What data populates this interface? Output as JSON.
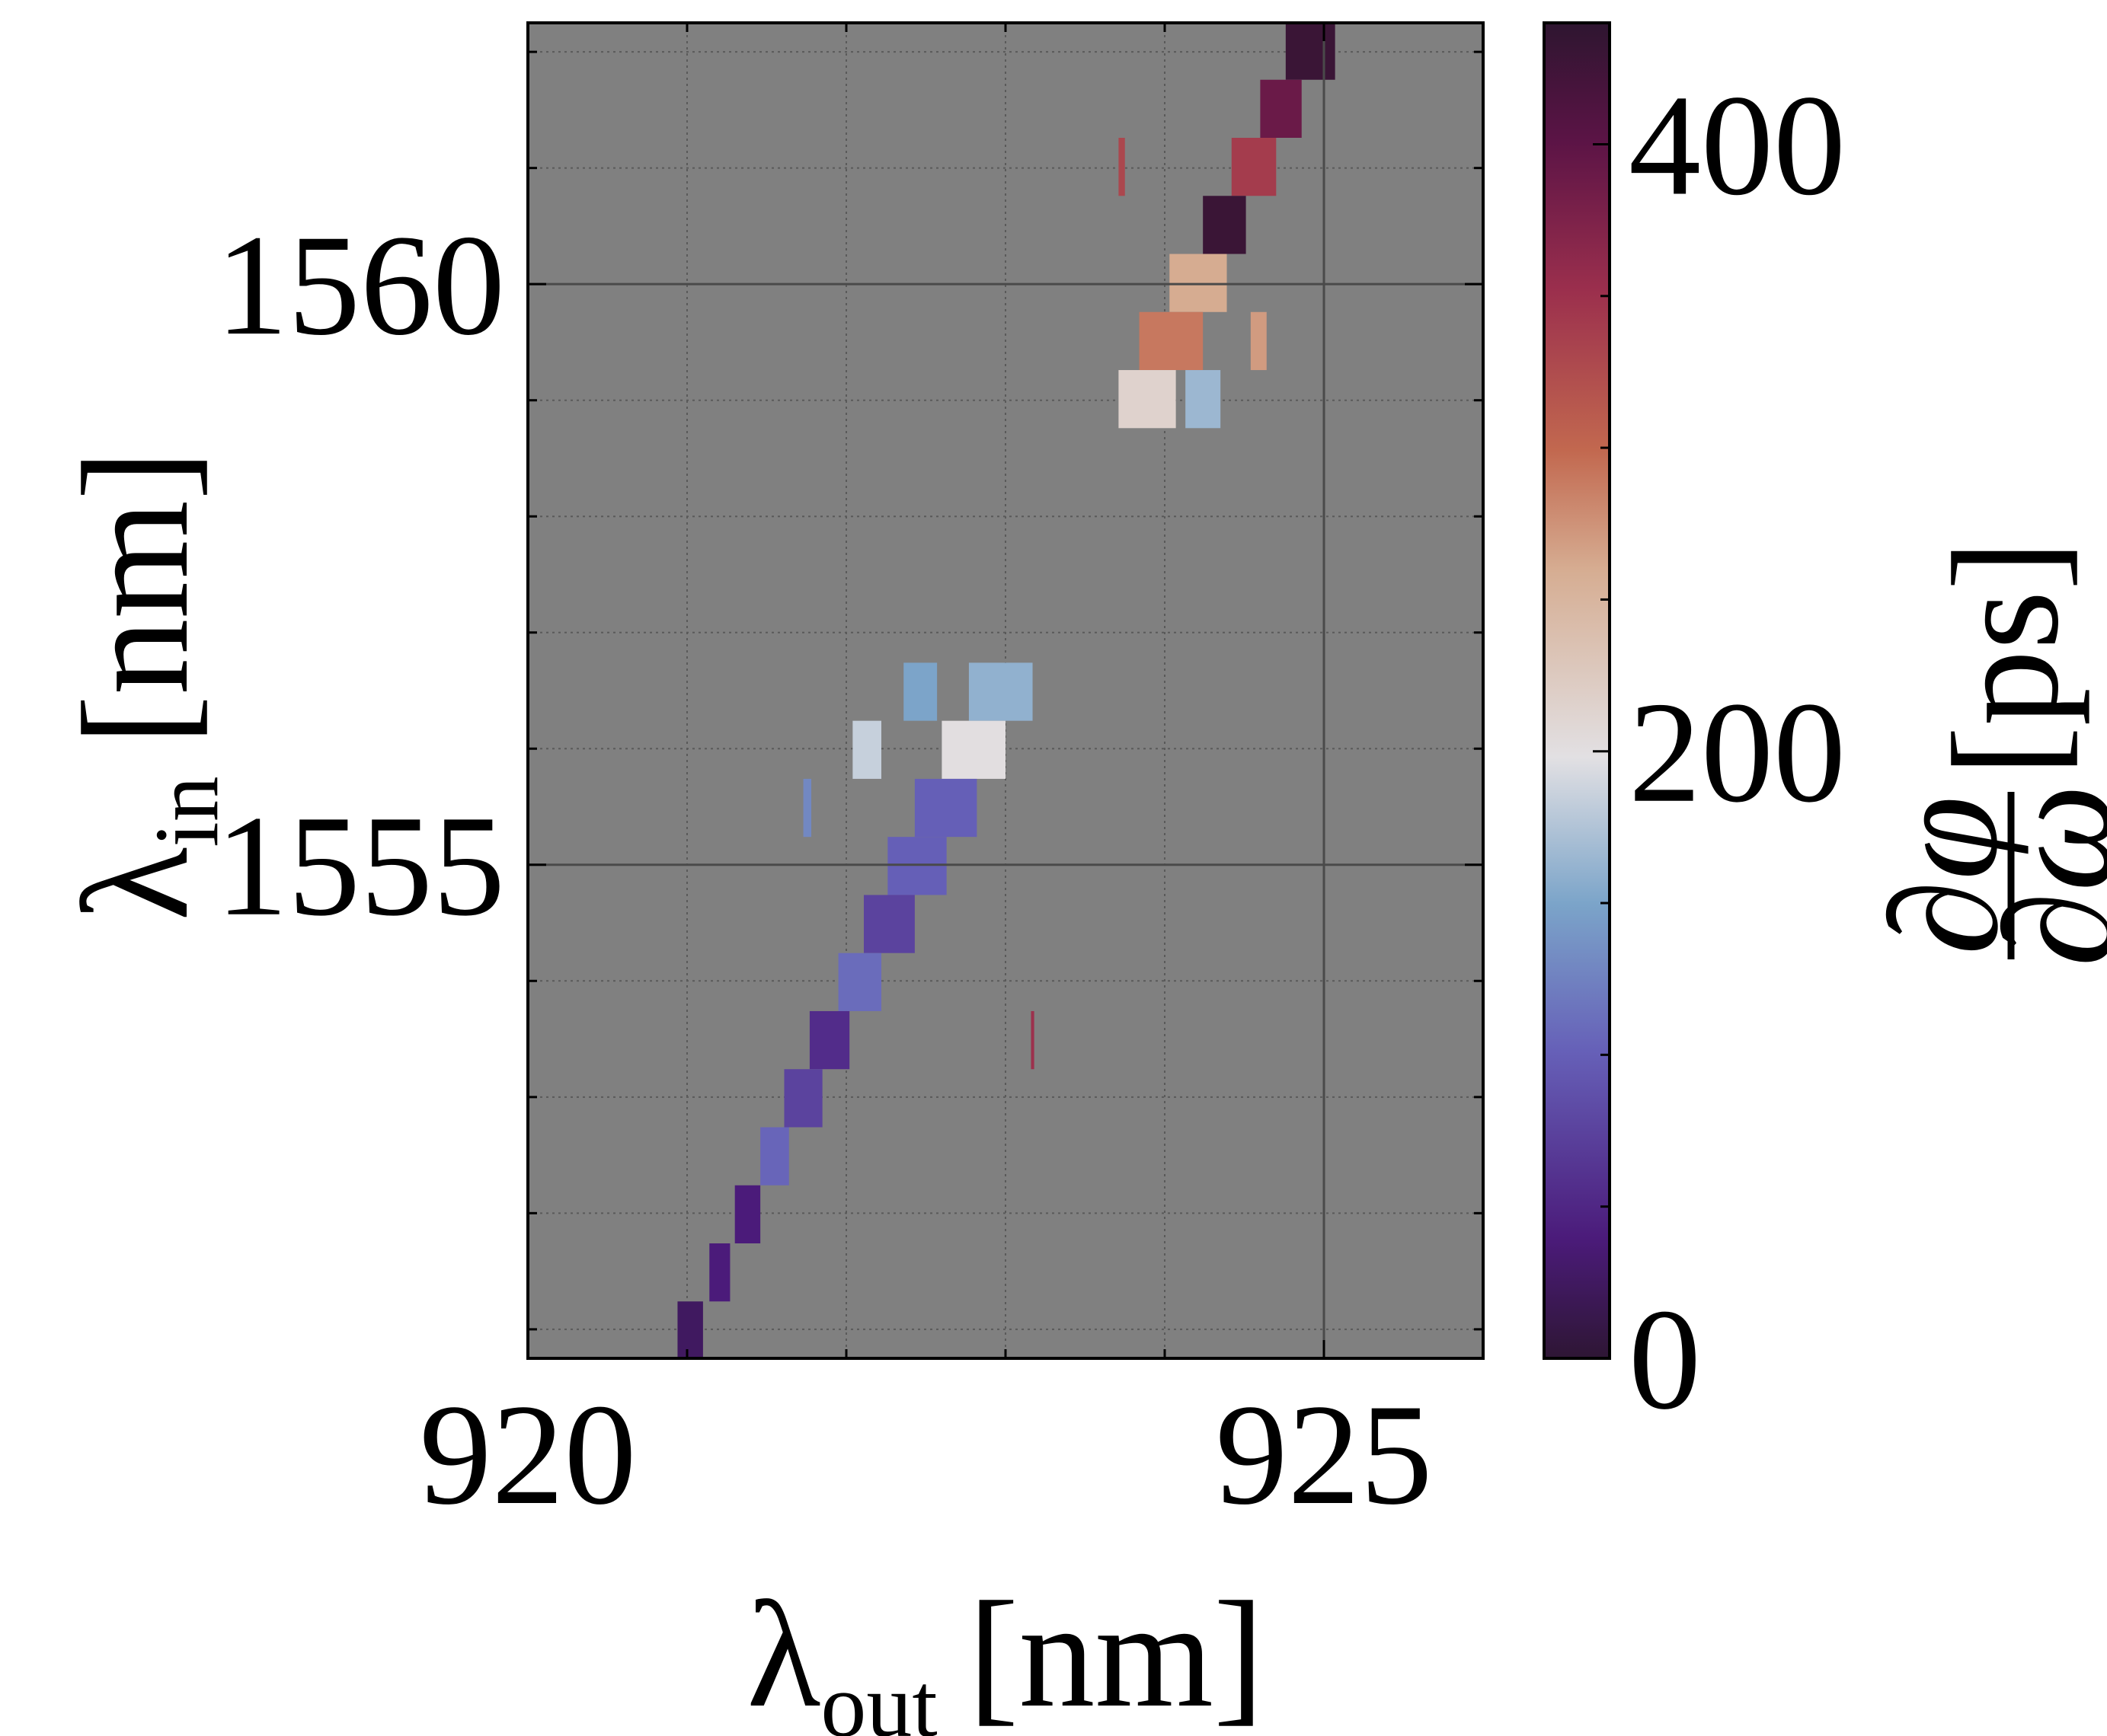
{
  "chart_data": {
    "type": "heatmap",
    "xlabel": {
      "symbol": "λ",
      "subscript": "out",
      "unit": "[nm]"
    },
    "ylabel": {
      "symbol": "λ",
      "subscript": "in",
      "unit": "[nm]"
    },
    "colorbar_label": {
      "numerator": "∂φ",
      "denominator": "∂ω",
      "unit": "[ps]"
    },
    "xlim": [
      920,
      926
    ],
    "xticks": [
      920,
      925
    ],
    "xminor_ticks": [
      921,
      922,
      923,
      924
    ],
    "ylim": [
      1550.75,
      1562.25
    ],
    "yticks": [
      1555,
      1560
    ],
    "yminor_ticks": [
      1551,
      1552,
      1553,
      1554,
      1556,
      1557,
      1558,
      1559,
      1561,
      1562
    ],
    "clim": [
      0,
      440
    ],
    "cticks": [
      0,
      200,
      400
    ],
    "cminor_ticks": [
      50,
      100,
      150,
      250,
      300,
      350
    ],
    "grid": true,
    "background": "#808080",
    "colormap": [
      [
        0,
        "#2e1634"
      ],
      [
        0.09,
        "#4b1b7a"
      ],
      [
        0.23,
        "#6660b8"
      ],
      [
        0.34,
        "#7ba4c9"
      ],
      [
        0.45,
        "#e2e0e3"
      ],
      [
        0.59,
        "#d6ad92"
      ],
      [
        0.68,
        "#c2684f"
      ],
      [
        0.8,
        "#9b2f4d"
      ],
      [
        0.91,
        "#5c1446"
      ],
      [
        1,
        "#2e1530"
      ]
    ],
    "cells": [
      {
        "x0": 924.76,
        "x1": 925.07,
        "y0": 1561.76,
        "y1": 1562.26,
        "value": 430
      },
      {
        "x0": 924.6,
        "x1": 924.86,
        "y0": 1561.26,
        "y1": 1561.76,
        "value": 390
      },
      {
        "x0": 924.42,
        "x1": 924.7,
        "y0": 1560.76,
        "y1": 1561.26,
        "value": 340
      },
      {
        "x0": 924.24,
        "x1": 924.51,
        "y0": 1560.26,
        "y1": 1560.76,
        "value": 430
      },
      {
        "x0": 924.03,
        "x1": 924.39,
        "y0": 1559.76,
        "y1": 1560.26,
        "value": 260
      },
      {
        "x0": 923.84,
        "x1": 924.24,
        "y0": 1559.26,
        "y1": 1559.76,
        "value": 290
      },
      {
        "x0": 924.54,
        "x1": 924.64,
        "y0": 1559.26,
        "y1": 1559.76,
        "value": 270
      },
      {
        "x0": 923.71,
        "x1": 924.07,
        "y0": 1558.76,
        "y1": 1559.26,
        "value": 215
      },
      {
        "x0": 924.13,
        "x1": 924.35,
        "y0": 1558.76,
        "y1": 1559.26,
        "value": 165
      },
      {
        "x0": 923.71,
        "x1": 923.75,
        "y0": 1560.76,
        "y1": 1561.26,
        "value": 330
      },
      {
        "x0": 922.36,
        "x1": 922.57,
        "y0": 1556.24,
        "y1": 1556.74,
        "value": 150
      },
      {
        "x0": 922.77,
        "x1": 923.17,
        "y0": 1556.24,
        "y1": 1556.74,
        "value": 160
      },
      {
        "x0": 922.04,
        "x1": 922.22,
        "y0": 1555.74,
        "y1": 1556.24,
        "value": 185
      },
      {
        "x0": 922.6,
        "x1": 923.0,
        "y0": 1555.74,
        "y1": 1556.24,
        "value": 200
      },
      {
        "x0": 921.73,
        "x1": 921.78,
        "y0": 1555.24,
        "y1": 1555.74,
        "value": 130
      },
      {
        "x0": 922.43,
        "x1": 922.82,
        "y0": 1555.24,
        "y1": 1555.74,
        "value": 100
      },
      {
        "x0": 922.26,
        "x1": 922.63,
        "y0": 1554.74,
        "y1": 1555.24,
        "value": 100
      },
      {
        "x0": 922.11,
        "x1": 922.43,
        "y0": 1554.24,
        "y1": 1554.74,
        "value": 75
      },
      {
        "x0": 921.95,
        "x1": 922.22,
        "y0": 1553.74,
        "y1": 1554.24,
        "value": 110
      },
      {
        "x0": 921.77,
        "x1": 922.02,
        "y0": 1553.24,
        "y1": 1553.74,
        "value": 55
      },
      {
        "x0": 921.61,
        "x1": 921.85,
        "y0": 1552.74,
        "y1": 1553.24,
        "value": 75
      },
      {
        "x0": 921.46,
        "x1": 921.64,
        "y0": 1552.24,
        "y1": 1552.74,
        "value": 105
      },
      {
        "x0": 921.3,
        "x1": 921.46,
        "y0": 1551.74,
        "y1": 1552.24,
        "value": 40
      },
      {
        "x0": 921.14,
        "x1": 921.27,
        "y0": 1551.24,
        "y1": 1551.74,
        "value": 40
      },
      {
        "x0": 920.94,
        "x1": 921.1,
        "y0": 1550.76,
        "y1": 1551.24,
        "value": 25
      },
      {
        "x0": 923.16,
        "x1": 923.18,
        "y0": 1553.24,
        "y1": 1553.74,
        "value": 350
      }
    ]
  }
}
